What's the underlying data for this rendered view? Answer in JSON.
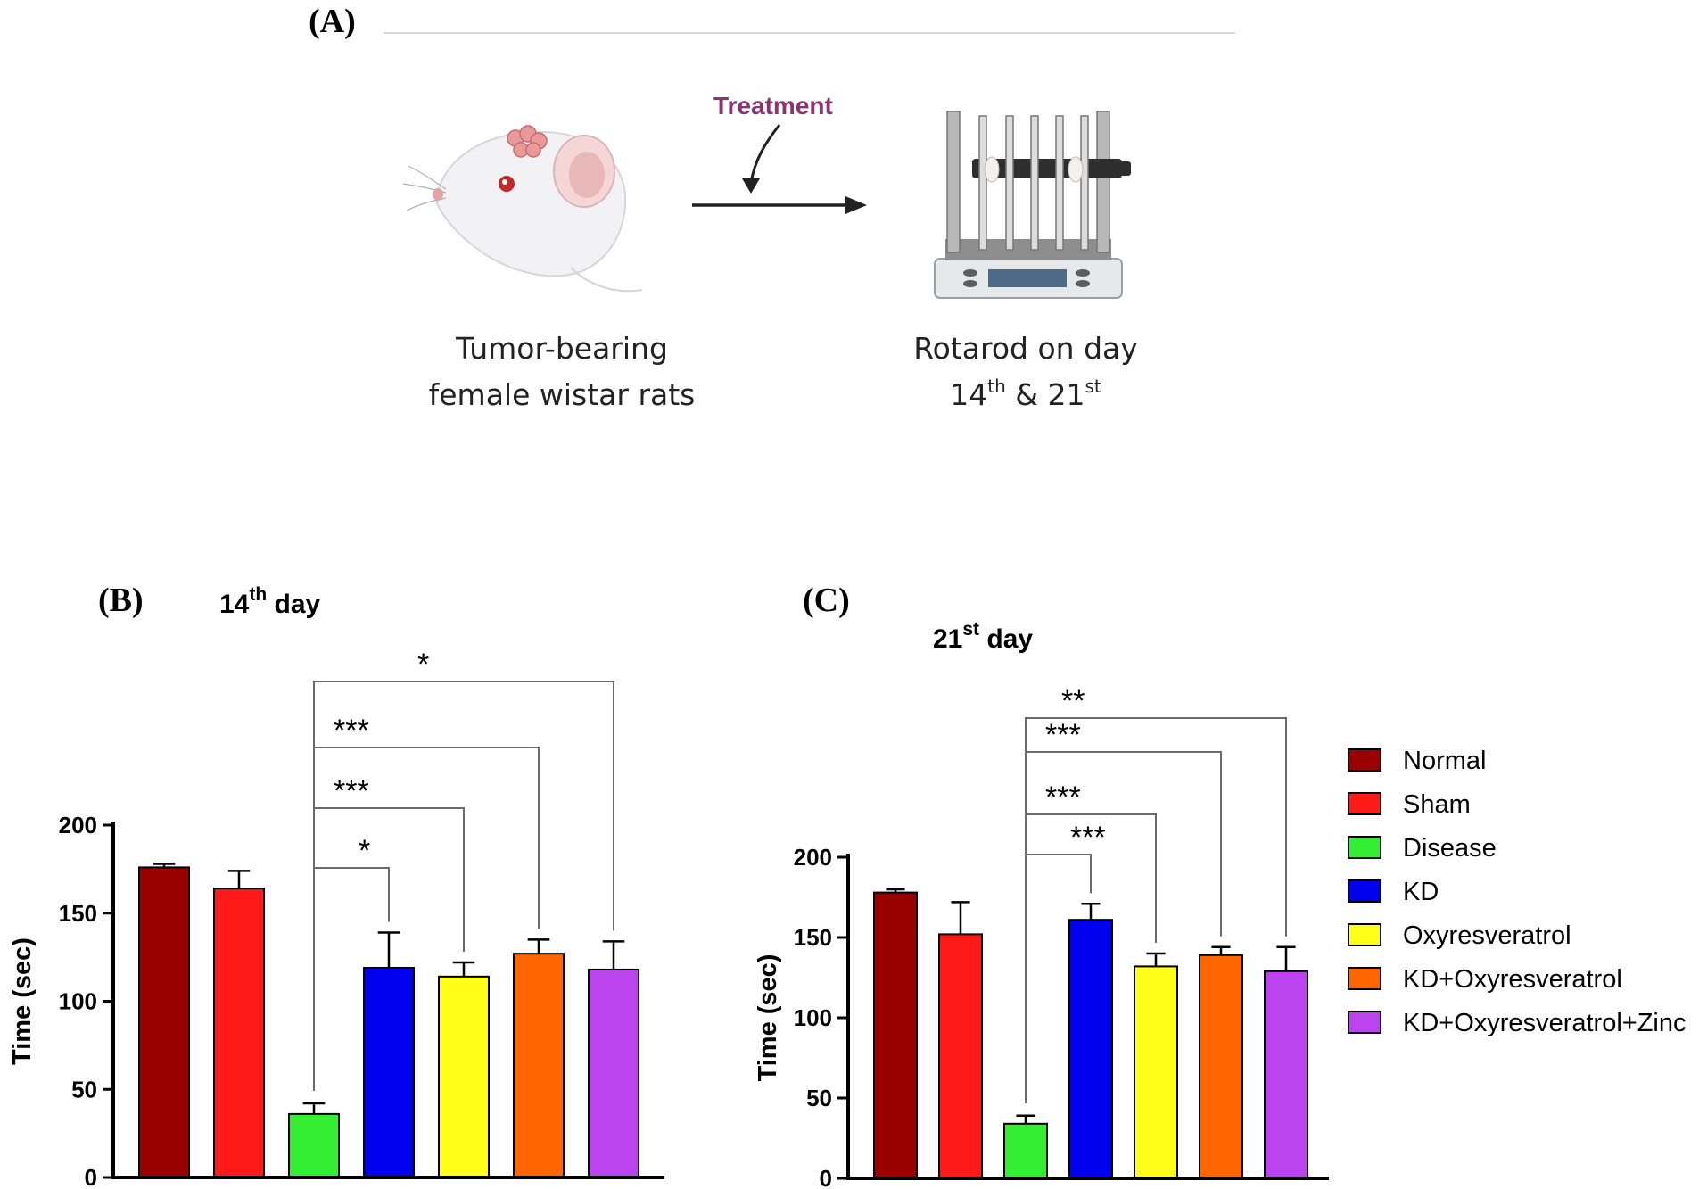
{
  "panels": {
    "a_label": "(A)",
    "b_label": "(B)",
    "c_label": "(C)"
  },
  "schematic": {
    "treatment_label": "Treatment",
    "left_caption_line1": "Tumor-bearing",
    "left_caption_line2": "female wistar rats",
    "right_caption_line1": "Rotarod on day",
    "right_caption_line2_a": "14",
    "right_caption_line2_a_sup": "th",
    "right_caption_line2_mid": " & 21",
    "right_caption_line2_b_sup": "st"
  },
  "legend": {
    "items": [
      {
        "label": "Normal",
        "color": "#9b0000"
      },
      {
        "label": "Sham",
        "color": "#ff1a1a"
      },
      {
        "label": "Disease",
        "color": "#33ee33"
      },
      {
        "label": "KD",
        "color": "#0000ee"
      },
      {
        "label": "Oxyresveratrol",
        "color": "#ffff1a"
      },
      {
        "label": "KD+Oxyresveratrol",
        "color": "#ff6600"
      },
      {
        "label": "KD+Oxyresveratrol+Zinc",
        "color": "#bb44ee"
      }
    ]
  },
  "chart_data": [
    {
      "type": "bar",
      "title": "14",
      "title_sup": "th",
      "title_suffix": " day",
      "ylabel": "Time (sec)",
      "ylim": [
        0,
        200
      ],
      "yticks": [
        "0",
        "50",
        "100",
        "150",
        "200"
      ],
      "categories": [
        "Normal",
        "Sham",
        "Disease",
        "KD",
        "Oxyresveratrol",
        "KD+Oxyresveratrol",
        "KD+Oxyresveratrol+Zinc"
      ],
      "values": [
        176,
        164,
        36,
        119,
        114,
        127,
        118
      ],
      "errors": [
        2,
        10,
        6,
        20,
        8,
        8,
        16
      ],
      "comparisons": [
        {
          "from": "Disease",
          "to": "KD",
          "label": "*"
        },
        {
          "from": "Disease",
          "to": "Oxyresveratrol",
          "label": "***"
        },
        {
          "from": "Disease",
          "to": "KD+Oxyresveratrol",
          "label": "***"
        },
        {
          "from": "Disease",
          "to": "KD+Oxyresveratrol+Zinc",
          "label": "*"
        }
      ]
    },
    {
      "type": "bar",
      "title": "21",
      "title_sup": "st",
      "title_suffix": " day",
      "ylabel": "Time (sec)",
      "ylim": [
        0,
        200
      ],
      "yticks": [
        "0",
        "50",
        "100",
        "150",
        "200"
      ],
      "categories": [
        "Normal",
        "Sham",
        "Disease",
        "KD",
        "Oxyresveratrol",
        "KD+Oxyresveratrol",
        "KD+Oxyresveratrol+Zinc"
      ],
      "values": [
        178,
        152,
        34,
        161,
        132,
        139,
        129
      ],
      "errors": [
        2,
        20,
        5,
        10,
        8,
        5,
        15
      ],
      "comparisons": [
        {
          "from": "Disease",
          "to": "KD",
          "label": "***"
        },
        {
          "from": "Disease",
          "to": "Oxyresveratrol",
          "label": "***"
        },
        {
          "from": "Disease",
          "to": "KD+Oxyresveratrol",
          "label": "***"
        },
        {
          "from": "Disease",
          "to": "KD+Oxyresveratrol+Zinc",
          "label": "**"
        }
      ]
    }
  ]
}
